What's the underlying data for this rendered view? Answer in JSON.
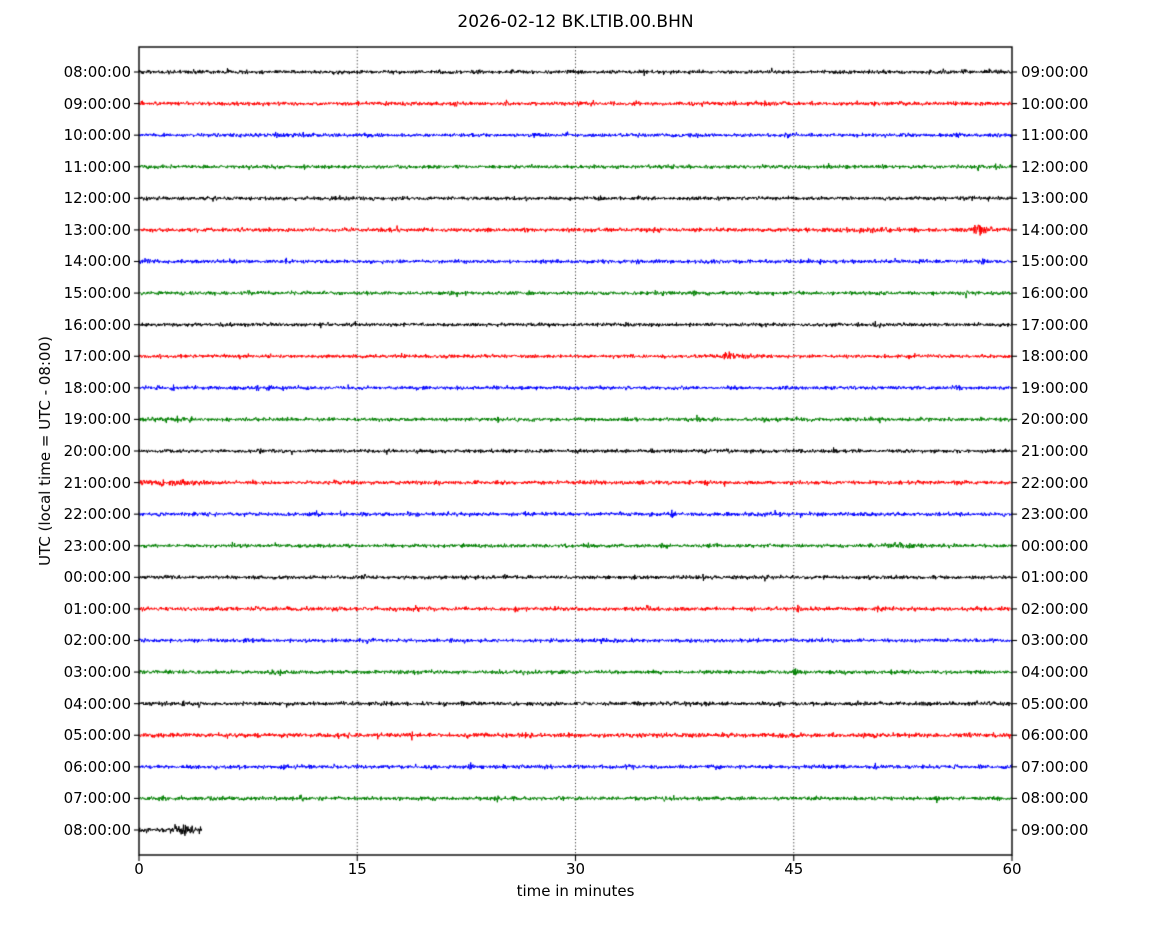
{
  "figure": {
    "title": "2026-02-12 BK.LTIB.00.BHN",
    "xlabel": "time in minutes",
    "ylabel": "UTC (local time = UTC - 08:00)",
    "background": "#ffffff"
  },
  "chart_data": {
    "type": "line",
    "subtype": "seismogram-dayplot",
    "title": "2026-02-12 BK.LTIB.00.BHN",
    "xlabel": "time in minutes",
    "ylabel": "UTC (local time = UTC - 08:00)",
    "x": {
      "min": 0,
      "max": 60,
      "ticks": [
        0,
        15,
        30,
        45,
        60
      ],
      "gridlines": [
        15,
        30,
        45
      ]
    },
    "interval_minutes": 60,
    "colors_cycle": [
      "#000000",
      "#ff0000",
      "#0000ff",
      "#008000"
    ],
    "rows": [
      {
        "utc_start": "08:00:00",
        "utc_end": "09:00:00",
        "color": "#000000",
        "amp": 1.0,
        "coverage": 1.0,
        "seed": 1,
        "events": []
      },
      {
        "utc_start": "09:00:00",
        "utc_end": "10:00:00",
        "color": "#ff0000",
        "amp": 1.05,
        "coverage": 1.0,
        "seed": 2,
        "events": []
      },
      {
        "utc_start": "10:00:00",
        "utc_end": "11:00:00",
        "color": "#0000ff",
        "amp": 1.0,
        "coverage": 1.0,
        "seed": 3,
        "events": [
          {
            "m": 10.5,
            "a": 0.6,
            "w": 1.0
          }
        ]
      },
      {
        "utc_start": "11:00:00",
        "utc_end": "12:00:00",
        "color": "#008000",
        "amp": 1.0,
        "coverage": 1.0,
        "seed": 4,
        "events": []
      },
      {
        "utc_start": "12:00:00",
        "utc_end": "13:00:00",
        "color": "#000000",
        "amp": 1.0,
        "coverage": 1.0,
        "seed": 5,
        "events": []
      },
      {
        "utc_start": "13:00:00",
        "utc_end": "14:00:00",
        "color": "#ff0000",
        "amp": 1.1,
        "coverage": 1.0,
        "seed": 6,
        "events": [
          {
            "m": 57.6,
            "a": 2.2,
            "w": 0.45
          },
          {
            "m": 50.0,
            "a": 0.5,
            "w": 2.0
          }
        ]
      },
      {
        "utc_start": "14:00:00",
        "utc_end": "15:00:00",
        "color": "#0000ff",
        "amp": 1.05,
        "coverage": 1.0,
        "seed": 7,
        "events": []
      },
      {
        "utc_start": "15:00:00",
        "utc_end": "16:00:00",
        "color": "#008000",
        "amp": 1.0,
        "coverage": 1.0,
        "seed": 8,
        "events": []
      },
      {
        "utc_start": "16:00:00",
        "utc_end": "17:00:00",
        "color": "#000000",
        "amp": 1.0,
        "coverage": 1.0,
        "seed": 9,
        "events": []
      },
      {
        "utc_start": "17:00:00",
        "utc_end": "18:00:00",
        "color": "#ff0000",
        "amp": 0.95,
        "coverage": 1.0,
        "seed": 10,
        "events": [
          {
            "m": 40.8,
            "a": 1.2,
            "w": 0.9
          }
        ]
      },
      {
        "utc_start": "18:00:00",
        "utc_end": "19:00:00",
        "color": "#0000ff",
        "amp": 1.0,
        "coverage": 1.0,
        "seed": 11,
        "events": []
      },
      {
        "utc_start": "19:00:00",
        "utc_end": "20:00:00",
        "color": "#008000",
        "amp": 1.0,
        "coverage": 1.0,
        "seed": 12,
        "events": [
          {
            "m": 2.0,
            "a": 0.6,
            "w": 1.0
          }
        ]
      },
      {
        "utc_start": "20:00:00",
        "utc_end": "21:00:00",
        "color": "#000000",
        "amp": 1.0,
        "coverage": 1.0,
        "seed": 13,
        "events": []
      },
      {
        "utc_start": "21:00:00",
        "utc_end": "22:00:00",
        "color": "#ff0000",
        "amp": 1.05,
        "coverage": 1.0,
        "seed": 14,
        "events": [
          {
            "m": 2.2,
            "a": 0.8,
            "w": 1.5
          }
        ]
      },
      {
        "utc_start": "22:00:00",
        "utc_end": "23:00:00",
        "color": "#0000ff",
        "amp": 1.05,
        "coverage": 1.0,
        "seed": 15,
        "events": []
      },
      {
        "utc_start": "23:00:00",
        "utc_end": "00:00:00",
        "color": "#008000",
        "amp": 1.0,
        "coverage": 1.0,
        "seed": 16,
        "events": [
          {
            "m": 52.0,
            "a": 0.7,
            "w": 0.8
          }
        ]
      },
      {
        "utc_start": "00:00:00",
        "utc_end": "01:00:00",
        "color": "#000000",
        "amp": 1.0,
        "coverage": 1.0,
        "seed": 17,
        "events": []
      },
      {
        "utc_start": "01:00:00",
        "utc_end": "02:00:00",
        "color": "#ff0000",
        "amp": 1.12,
        "coverage": 1.0,
        "seed": 18,
        "events": []
      },
      {
        "utc_start": "02:00:00",
        "utc_end": "03:00:00",
        "color": "#0000ff",
        "amp": 1.0,
        "coverage": 1.0,
        "seed": 19,
        "events": []
      },
      {
        "utc_start": "03:00:00",
        "utc_end": "04:00:00",
        "color": "#008000",
        "amp": 1.05,
        "coverage": 1.0,
        "seed": 20,
        "events": []
      },
      {
        "utc_start": "04:00:00",
        "utc_end": "05:00:00",
        "color": "#000000",
        "amp": 1.08,
        "coverage": 1.0,
        "seed": 21,
        "events": []
      },
      {
        "utc_start": "05:00:00",
        "utc_end": "06:00:00",
        "color": "#ff0000",
        "amp": 1.28,
        "coverage": 1.0,
        "seed": 22,
        "events": []
      },
      {
        "utc_start": "06:00:00",
        "utc_end": "07:00:00",
        "color": "#0000ff",
        "amp": 1.05,
        "coverage": 1.0,
        "seed": 23,
        "events": []
      },
      {
        "utc_start": "07:00:00",
        "utc_end": "08:00:00",
        "color": "#008000",
        "amp": 1.05,
        "coverage": 1.0,
        "seed": 24,
        "events": []
      },
      {
        "utc_start": "08:00:00",
        "utc_end": "09:00:00",
        "color": "#000000",
        "amp": 1.25,
        "coverage": 0.072,
        "seed": 25,
        "events": [
          {
            "m": 3.2,
            "a": 1.2,
            "w": 0.7
          }
        ]
      }
    ]
  }
}
